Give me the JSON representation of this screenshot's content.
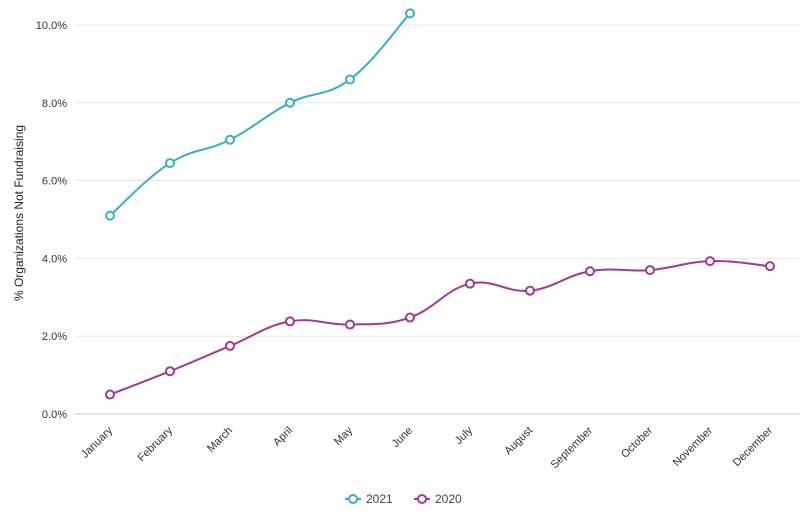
{
  "chart_data": {
    "type": "line",
    "ylabel": "% Organizations Not Fundraising",
    "ylim": [
      0,
      10
    ],
    "y_ticks": [
      "0.0%",
      "2.0%",
      "4.0%",
      "6.0%",
      "8.0%",
      "10.0%"
    ],
    "grid": true,
    "legend_position": "bottom-center",
    "categories": [
      "January",
      "February",
      "March",
      "April",
      "May",
      "June",
      "July",
      "August",
      "September",
      "October",
      "November",
      "December"
    ],
    "series": [
      {
        "name": "2021",
        "color": "#3aafc8",
        "values": [
          5.1,
          6.45,
          7.05,
          8.0,
          8.6,
          10.3,
          null,
          null,
          null,
          null,
          null,
          null
        ]
      },
      {
        "name": "2020",
        "color": "#a0399a",
        "values": [
          0.5,
          1.1,
          1.75,
          2.38,
          2.3,
          2.48,
          3.35,
          3.17,
          3.67,
          3.7,
          3.93,
          3.8
        ]
      }
    ]
  }
}
